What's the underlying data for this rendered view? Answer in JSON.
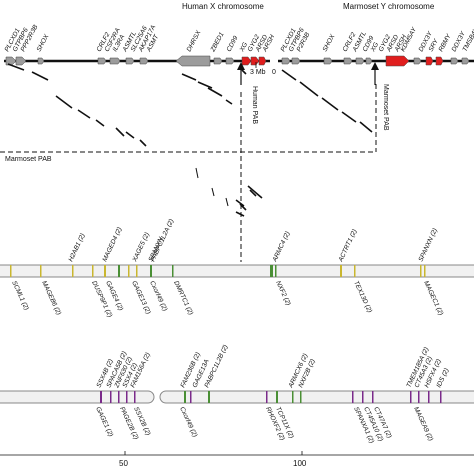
{
  "titles": {
    "human": "Human X chromosome",
    "marmoset": "Marmoset Y chromosome"
  },
  "scale": {
    "left": "3 Mb",
    "right": "0"
  },
  "labels": {
    "human_pab": "Human PAB",
    "marmoset_pab_vertical": "Marmoset PAB",
    "marmoset_pab_horizontal": "Marmoset PAB"
  },
  "axis_ticks": [
    "50",
    "100"
  ],
  "human_genes": [
    "PLCXD1",
    "GTPBP6",
    "PPP2R3B",
    "SHOX",
    "CRLF2",
    "CSF2RA",
    "IL3RA",
    "ASMTL",
    "SLC25A6",
    "AKAP17A",
    "ASMT",
    "DHRSX",
    "ZBED1",
    "CD99",
    "XG",
    "GYG2",
    "ARSD",
    "ARSH"
  ],
  "marmoset_genes": [
    "PLCXD1",
    "GTPBP6",
    "P2R3B",
    "SHOX",
    "CRLF2",
    "ASMTL",
    "CD99",
    "XG",
    "GYG2",
    "ARSD",
    "ARSH",
    "KDM5AY",
    "DDX3Y",
    "SRY",
    "RBMY",
    "DDX3Y",
    "TMSB4Y"
  ],
  "yellow_top": [
    "H2AB1 (2)",
    "MAGED4 (2)",
    "XAGE5 (2)",
    "SPANXN",
    "ACTRT1 (2)",
    "SPANXN (2)"
  ],
  "yellow_bottom": [
    "SCML1 (2)",
    "MAGEB6 (2)",
    "DUSP9P1 (2)",
    "GAGE4 (2)",
    "GAGE13 (2)",
    "TEX13D (2)",
    "MAGEC1 (2)"
  ],
  "green_top": [
    "PABPC1L2A (2)",
    "ARMC4 (2)"
  ],
  "green_bottom": [
    "Cxorf49 (2)",
    "DMRTC1 (2)",
    "NXF2 (2)"
  ],
  "purple_top": [
    "SSX4B (2)",
    "SPACA5B (2)",
    "ZNF630 (2)",
    "SSX4 (2)",
    "FAM156A (2)",
    "FAM236B (2)",
    "GAGE13A",
    "PABPC1L2B (2)",
    "ARMCX6 (2)",
    "NXF2B (2)",
    "TMEM185A (2)",
    "CT45A3 (2)",
    "HSFX4 (2)",
    "IDS (2)"
  ],
  "purple_bottom": [
    "GAGE1 (2)",
    "PAGE2B (2)",
    "SSX2B (2)",
    "Cxorf49 (2)",
    "RHOXF2 (2)",
    "TCP11X (2)",
    "SPANXA1 (2)",
    "CT45A10 (2)",
    "CT47A7 (2)",
    "MAGEA9 (2)"
  ],
  "colors": {
    "yellow": "#c9b62f",
    "green": "#4a8f35",
    "purple": "#7a2a8a",
    "red": "#e01e1e",
    "gray": "#9c9c9c"
  }
}
